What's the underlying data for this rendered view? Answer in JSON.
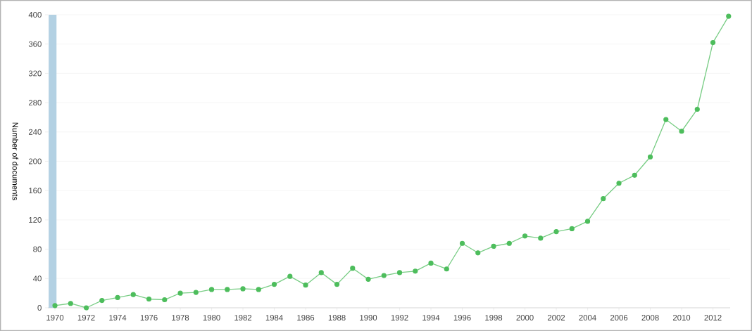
{
  "chart_data": {
    "type": "line",
    "ylabel": "Number of documents",
    "x": [
      1970,
      1971,
      1972,
      1973,
      1974,
      1975,
      1976,
      1977,
      1978,
      1979,
      1980,
      1981,
      1982,
      1983,
      1984,
      1985,
      1986,
      1987,
      1988,
      1989,
      1990,
      1991,
      1992,
      1993,
      1994,
      1995,
      1996,
      1997,
      1998,
      1999,
      2000,
      2001,
      2002,
      2003,
      2004,
      2005,
      2006,
      2007,
      2008,
      2009,
      2010,
      2011,
      2012,
      2013
    ],
    "values": [
      3,
      6,
      0,
      10,
      14,
      18,
      12,
      11,
      20,
      21,
      25,
      25,
      26,
      25,
      32,
      43,
      31,
      48,
      32,
      54,
      39,
      44,
      48,
      50,
      61,
      53,
      88,
      75,
      84,
      88,
      98,
      95,
      104,
      108,
      118,
      149,
      170,
      181,
      206,
      257,
      241,
      271,
      362,
      398
    ],
    "color": "#4dbd5c",
    "marker": "circle",
    "line_style": "solid",
    "grid": "y",
    "xlim": [
      1969.55,
      2013.1
    ],
    "ylim": [
      0,
      400
    ],
    "xticks": [
      1970,
      1972,
      1974,
      1976,
      1978,
      1980,
      1982,
      1984,
      1986,
      1988,
      1990,
      1992,
      1994,
      1996,
      1998,
      2000,
      2002,
      2004,
      2006,
      2008,
      2010,
      2012
    ],
    "yticks": [
      0,
      40,
      80,
      120,
      160,
      200,
      240,
      280,
      320,
      360,
      400
    ],
    "bands": [
      {
        "axis": "x",
        "from": 1969.6,
        "to": 1970.1,
        "color": "#b3d1e3"
      }
    ]
  }
}
